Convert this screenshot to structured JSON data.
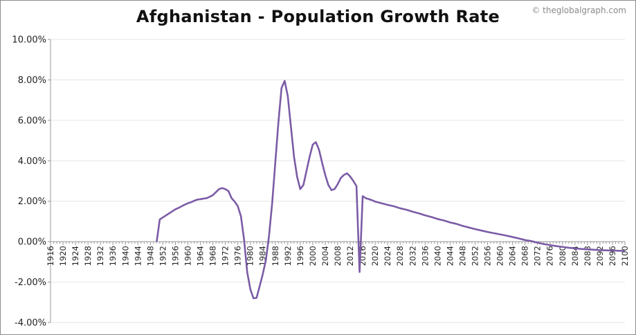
{
  "credit": "© theglobalgraph.com",
  "chart_data": {
    "type": "line",
    "title": "Afghanistan - Population Growth Rate",
    "xlabel": "",
    "ylabel": "",
    "xlim": [
      1916,
      2100
    ],
    "ylim": [
      -4,
      10
    ],
    "y_ticks": [
      -4,
      -2,
      0,
      2,
      4,
      6,
      8,
      10
    ],
    "y_tick_labels": [
      "-4.00%",
      "-2.00%",
      "0.00%",
      "2.00%",
      "4.00%",
      "6.00%",
      "8.00%",
      "10.00%"
    ],
    "x_tick_labels": [
      "1916",
      "1920",
      "1924",
      "1928",
      "1932",
      "1936",
      "1940",
      "1944",
      "1948",
      "1952",
      "1956",
      "1960",
      "1964",
      "1968",
      "1972",
      "1976",
      "1980",
      "1984",
      "1988",
      "1992",
      "1996",
      "2000",
      "2004",
      "2008",
      "2012",
      "2016",
      "2020",
      "2024",
      "2028",
      "2032",
      "2036",
      "2040",
      "2044",
      "2048",
      "2052",
      "2056",
      "2060",
      "2064",
      "2068",
      "2072",
      "2076",
      "2080",
      "2084",
      "2088",
      "2092",
      "2096",
      "2100"
    ],
    "grid": true,
    "line_color": "#7b5ba6",
    "series": [
      {
        "name": "Population Growth Rate",
        "x": [
          1950,
          1951,
          1952,
          1953,
          1954,
          1955,
          1956,
          1957,
          1958,
          1959,
          1960,
          1961,
          1962,
          1963,
          1964,
          1965,
          1966,
          1967,
          1968,
          1969,
          1970,
          1971,
          1972,
          1973,
          1974,
          1975,
          1976,
          1977,
          1978,
          1979,
          1980,
          1981,
          1982,
          1983,
          1984,
          1985,
          1986,
          1987,
          1988,
          1989,
          1990,
          1991,
          1992,
          1993,
          1994,
          1995,
          1996,
          1997,
          1998,
          1999,
          2000,
          2001,
          2002,
          2003,
          2004,
          2005,
          2006,
          2007,
          2008,
          2009,
          2010,
          2011,
          2012,
          2013,
          2014,
          2015,
          2016,
          2017,
          2018,
          2019,
          2020,
          2022,
          2024,
          2026,
          2028,
          2030,
          2032,
          2034,
          2036,
          2038,
          2040,
          2042,
          2044,
          2046,
          2048,
          2050,
          2052,
          2054,
          2056,
          2058,
          2060,
          2062,
          2064,
          2066,
          2068,
          2070,
          2072,
          2074,
          2076,
          2078,
          2080,
          2082,
          2084,
          2086,
          2088,
          2090,
          2092,
          2094,
          2096,
          2098,
          2100
        ],
        "y": [
          0.0,
          1.1,
          1.2,
          1.3,
          1.4,
          1.5,
          1.6,
          1.67,
          1.75,
          1.83,
          1.9,
          1.95,
          2.02,
          2.08,
          2.1,
          2.13,
          2.15,
          2.22,
          2.3,
          2.45,
          2.6,
          2.65,
          2.6,
          2.5,
          2.15,
          1.98,
          1.75,
          1.25,
          0.1,
          -1.5,
          -2.35,
          -2.8,
          -2.78,
          -2.2,
          -1.6,
          -0.9,
          0.3,
          1.9,
          3.9,
          5.9,
          7.6,
          7.95,
          7.2,
          5.7,
          4.2,
          3.2,
          2.6,
          2.8,
          3.5,
          4.2,
          4.8,
          4.92,
          4.55,
          3.9,
          3.3,
          2.8,
          2.55,
          2.6,
          2.85,
          3.15,
          3.3,
          3.38,
          3.22,
          3.0,
          2.75,
          -1.5,
          2.25,
          2.15,
          2.1,
          2.05,
          1.98,
          1.9,
          1.82,
          1.75,
          1.65,
          1.58,
          1.48,
          1.4,
          1.3,
          1.22,
          1.12,
          1.05,
          0.95,
          0.88,
          0.78,
          0.7,
          0.62,
          0.55,
          0.48,
          0.42,
          0.36,
          0.3,
          0.23,
          0.16,
          0.08,
          0.03,
          -0.05,
          -0.12,
          -0.17,
          -0.22,
          -0.26,
          -0.3,
          -0.33,
          -0.36,
          -0.38,
          -0.4,
          -0.42,
          -0.43,
          -0.44,
          -0.45,
          -0.46
        ]
      }
    ]
  }
}
